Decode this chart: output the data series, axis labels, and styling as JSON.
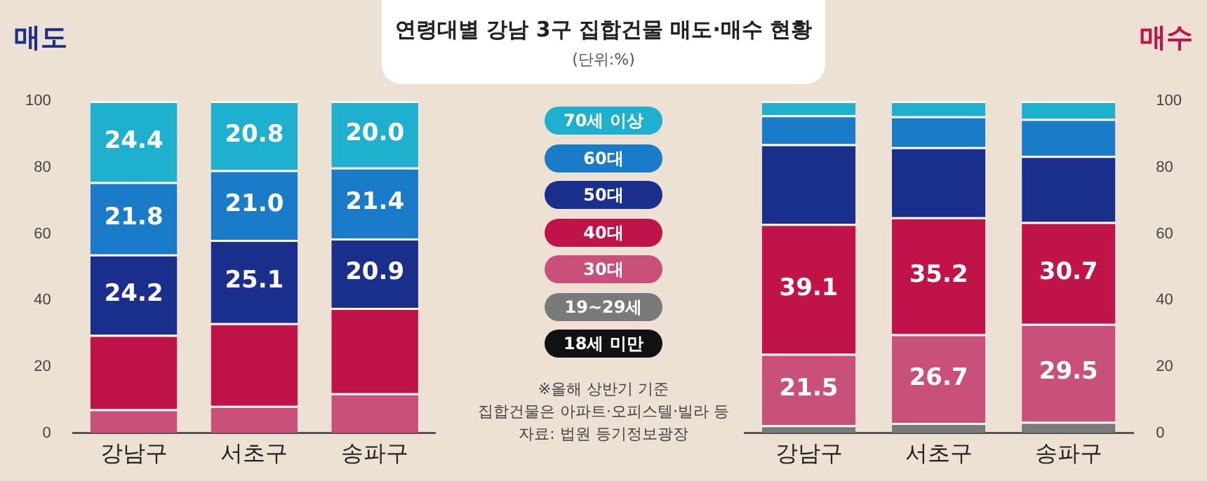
{
  "chart_data": [
    {
      "type": "bar",
      "title": "매도",
      "stacked": true,
      "legend": "right",
      "grid": false,
      "categories": [
        "강남구",
        "서초구",
        "송파구"
      ],
      "ylim": [
        0,
        100
      ],
      "yticks": [
        0,
        20,
        40,
        60,
        80,
        100
      ],
      "annotations": [
        "연령대별 강남 3구 집합건물 매도·매수 현황",
        "(단위:%)",
        "※올해 상반기 기준",
        "집합건물은 아파트·오피스텔·빌라 등",
        "자료: 법원 등기정보광장"
      ],
      "series": [
        {
          "name": "18세 미만",
          "color": "#111111",
          "values": [
            0,
            0,
            0
          ]
        },
        {
          "name": "19~29세",
          "color": "#7a7a7a",
          "values": [
            0,
            0,
            0
          ]
        },
        {
          "name": "30대",
          "color": "#c8507a",
          "values": [
            7.2,
            8.2,
            12.0
          ]
        },
        {
          "name": "40대",
          "color": "#c0134a",
          "values": [
            22.4,
            24.9,
            25.7
          ]
        },
        {
          "name": "50대",
          "color": "#1a2f8c",
          "values": [
            24.2,
            25.1,
            20.9
          ],
          "value_labels": [
            "24.2",
            "25.1",
            "20.9"
          ]
        },
        {
          "name": "60대",
          "color": "#1a7cc8",
          "values": [
            21.8,
            21.0,
            21.4
          ],
          "value_labels": [
            "21.8",
            "21.0",
            "21.4"
          ]
        },
        {
          "name": "70세 이상",
          "color": "#1fb0d0",
          "values": [
            24.4,
            20.8,
            20.0
          ],
          "value_labels": [
            "24.4",
            "20.8",
            "20.0"
          ]
        }
      ]
    },
    {
      "type": "bar",
      "title": "매수",
      "stacked": true,
      "grid": false,
      "categories": [
        "강남구",
        "서초구",
        "송파구"
      ],
      "ylim": [
        0,
        100
      ],
      "yticks": [
        0,
        20,
        40,
        60,
        80,
        100
      ],
      "series": [
        {
          "color": "#111111",
          "values": [
            0,
            0,
            0
          ]
        },
        {
          "color": "#7a7a7a",
          "values": [
            2.4,
            3.1,
            3.4
          ]
        },
        {
          "color": "#c8507a",
          "values": [
            21.5,
            26.7,
            29.5
          ],
          "value_labels": [
            "21.5",
            "26.7",
            "29.5"
          ]
        },
        {
          "color": "#c0134a",
          "values": [
            39.1,
            35.2,
            30.7
          ],
          "value_labels": [
            "39.1",
            "35.2",
            "30.7"
          ]
        },
        {
          "color": "#1a2f8c",
          "values": [
            24.0,
            21.1,
            19.9
          ]
        },
        {
          "color": "#1a7cc8",
          "values": [
            8.7,
            9.3,
            11.1
          ]
        },
        {
          "color": "#1fb0d0",
          "values": [
            4.3,
            4.6,
            5.4
          ]
        }
      ]
    }
  ]
}
